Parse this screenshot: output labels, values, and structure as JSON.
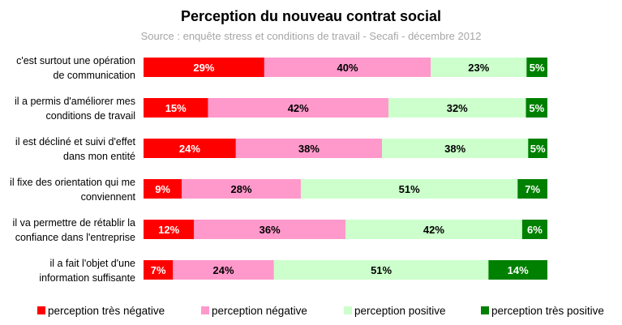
{
  "chart_data": {
    "type": "bar",
    "orientation": "horizontal",
    "stacked": true,
    "normalized": true,
    "title": "Perception du nouveau contrat social",
    "subtitle": "Source : enquête stress et conditions de travail - Secafi - décembre 2012",
    "categories": [
      [
        "c'est surtout une opération",
        "de communication"
      ],
      [
        "il a permis d'améliorer mes",
        "conditions de travail"
      ],
      [
        "il est décliné et suivi d'effet",
        "dans mon entité"
      ],
      [
        "il fixe des orientation qui me",
        "conviennent"
      ],
      [
        "il va permettre de rétablir la",
        "confiance dans l'entreprise"
      ],
      [
        "il a fait l'objet d'une",
        "information suffisante"
      ]
    ],
    "series": [
      {
        "name": "perception très négative",
        "color": "#ff0000",
        "label_color": "#ffffff",
        "values": [
          29,
          15,
          24,
          9,
          12,
          7
        ]
      },
      {
        "name": "perception négative",
        "color": "#ff99cc",
        "label_color": "#000000",
        "values": [
          40,
          42,
          38,
          28,
          36,
          24
        ]
      },
      {
        "name": "perception positive",
        "color": "#ccffcc",
        "label_color": "#000000",
        "values": [
          23,
          32,
          38,
          51,
          42,
          51
        ]
      },
      {
        "name": "perception très positive",
        "color": "#008000",
        "label_color": "#ffffff",
        "values": [
          5,
          5,
          5,
          7,
          6,
          14
        ]
      }
    ],
    "value_suffix": "%",
    "legend_position": "bottom",
    "grid": false
  }
}
